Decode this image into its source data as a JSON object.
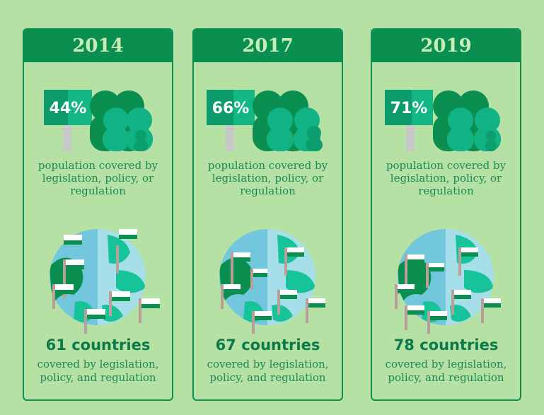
{
  "cards": [
    {
      "year": "2014",
      "percent": "44%",
      "population_text": "population covered by legislation, policy, or regulation",
      "countries": "61 countries",
      "covered_text": "covered by legislation, policy, and regulation"
    },
    {
      "year": "2017",
      "percent": "66%",
      "population_text": "population covered by legislation, policy, or regulation",
      "countries": "67 countries",
      "covered_text": "covered by legislation, policy, and regulation"
    },
    {
      "year": "2019",
      "percent": "71%",
      "population_text": "population covered by legislation, policy, or regulation",
      "countries": "78 countries",
      "covered_text": "covered by legislation, policy, and regulation"
    }
  ],
  "colors": {
    "background": "#b5e1a4",
    "dark_green": "#0a8f51",
    "teal": "#17c49a",
    "ocean": "#7cc9d8"
  },
  "icons": [
    "sign-icon",
    "people-icon",
    "globe-icon",
    "flag-icon"
  ]
}
